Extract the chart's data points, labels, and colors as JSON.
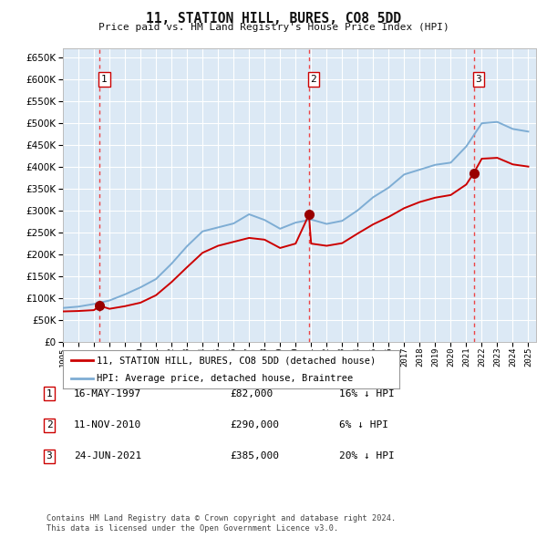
{
  "title": "11, STATION HILL, BURES, CO8 5DD",
  "subtitle": "Price paid vs. HM Land Registry's House Price Index (HPI)",
  "footer1": "Contains HM Land Registry data © Crown copyright and database right 2024.",
  "footer2": "This data is licensed under the Open Government Licence v3.0.",
  "legend_label1": "11, STATION HILL, BURES, CO8 5DD (detached house)",
  "legend_label2": "HPI: Average price, detached house, Braintree",
  "transactions": [
    {
      "num": 1,
      "date": "16-MAY-1997",
      "price": 82000,
      "pct": "16%",
      "x": 1997.37
    },
    {
      "num": 2,
      "date": "11-NOV-2010",
      "price": 290000,
      "pct": "6%",
      "x": 2010.86
    },
    {
      "num": 3,
      "date": "24-JUN-2021",
      "price": 385000,
      "pct": "20%",
      "x": 2021.48
    }
  ],
  "price_paid_color": "#cc0000",
  "hpi_color": "#7eadd4",
  "vline_color": "#ee3333",
  "dot_color": "#990000",
  "background_color": "#dce9f5",
  "grid_color": "#ffffff",
  "ylim": [
    0,
    670000
  ],
  "xlim": [
    1995.0,
    2025.5
  ],
  "hpi_data_years": [
    1995,
    1996,
    1997,
    1998,
    1999,
    2000,
    2001,
    2002,
    2003,
    2004,
    2005,
    2006,
    2007,
    2008,
    2009,
    2010,
    2011,
    2012,
    2013,
    2014,
    2015,
    2016,
    2017,
    2018,
    2019,
    2020,
    2021,
    2022,
    2023,
    2024,
    2025
  ],
  "hpi_data_values": [
    77000,
    80000,
    86000,
    94000,
    108000,
    124000,
    143000,
    178000,
    218000,
    252000,
    261000,
    270000,
    291000,
    278000,
    258000,
    272000,
    279000,
    269000,
    276000,
    300000,
    330000,
    352000,
    382000,
    393000,
    404000,
    409000,
    446000,
    499000,
    502000,
    486000,
    480000
  ],
  "pp_data_years": [
    1995,
    1996,
    1997,
    1997.37,
    1998,
    1999,
    2000,
    2001,
    2002,
    2003,
    2004,
    2005,
    2006,
    2007,
    2008,
    2009,
    2010,
    2010.86,
    2011,
    2012,
    2013,
    2014,
    2015,
    2016,
    2017,
    2018,
    2019,
    2020,
    2021,
    2021.48,
    2022,
    2023,
    2024,
    2025
  ],
  "pp_data_values": [
    69000,
    70000,
    72000,
    82000,
    75000,
    81000,
    89000,
    106000,
    136000,
    170000,
    203000,
    219000,
    228000,
    237000,
    233000,
    214000,
    224000,
    290000,
    224000,
    219000,
    225000,
    247000,
    268000,
    285000,
    305000,
    319000,
    329000,
    335000,
    359000,
    385000,
    418000,
    420000,
    405000,
    400000
  ]
}
